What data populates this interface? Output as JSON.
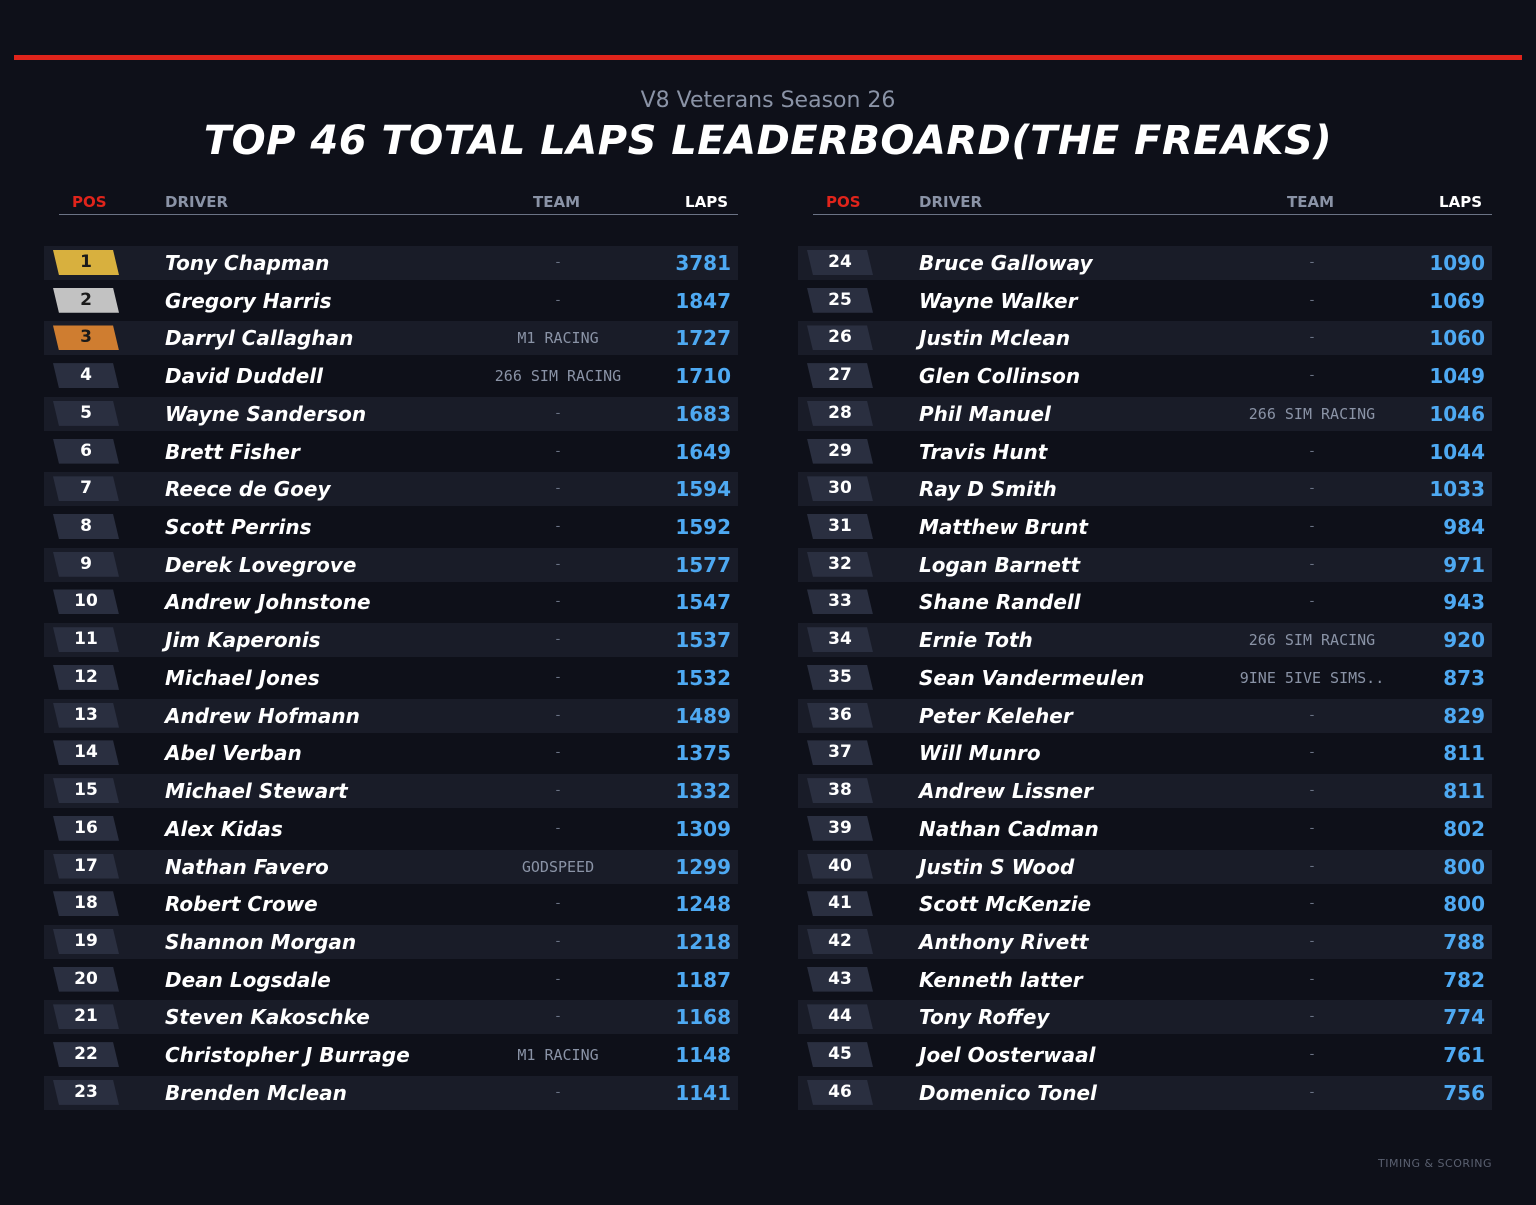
{
  "colors": {
    "accent": "#e0241b",
    "gold": "#d8b03e",
    "silver": "#c2c2c2",
    "bronze": "#cf7d30",
    "laps": "#4ea9f2",
    "background": "#0e1019"
  },
  "subtitle": "V8 Veterans Season 26",
  "title": "TOP 46 TOTAL LAPS LEADERBOARD(THE FREAKS)",
  "headers": {
    "pos": "POS",
    "driver": "DRIVER",
    "team": "TEAM",
    "laps": "LAPS"
  },
  "footer": "TIMING & SCORING",
  "left": [
    {
      "pos": "1",
      "driver": "Tony Chapman",
      "team": "-",
      "laps": "3781"
    },
    {
      "pos": "2",
      "driver": "Gregory Harris",
      "team": "-",
      "laps": "1847"
    },
    {
      "pos": "3",
      "driver": "Darryl Callaghan",
      "team": "M1 RACING",
      "laps": "1727"
    },
    {
      "pos": "4",
      "driver": "David Duddell",
      "team": "266 SIM RACING",
      "laps": "1710"
    },
    {
      "pos": "5",
      "driver": "Wayne Sanderson",
      "team": "-",
      "laps": "1683"
    },
    {
      "pos": "6",
      "driver": "Brett Fisher",
      "team": "-",
      "laps": "1649"
    },
    {
      "pos": "7",
      "driver": "Reece de Goey",
      "team": "-",
      "laps": "1594"
    },
    {
      "pos": "8",
      "driver": "Scott Perrins",
      "team": "-",
      "laps": "1592"
    },
    {
      "pos": "9",
      "driver": "Derek Lovegrove",
      "team": "-",
      "laps": "1577"
    },
    {
      "pos": "10",
      "driver": "Andrew Johnstone",
      "team": "-",
      "laps": "1547"
    },
    {
      "pos": "11",
      "driver": "Jim Kaperonis",
      "team": "-",
      "laps": "1537"
    },
    {
      "pos": "12",
      "driver": "Michael Jones",
      "team": "-",
      "laps": "1532"
    },
    {
      "pos": "13",
      "driver": "Andrew Hofmann",
      "team": "-",
      "laps": "1489"
    },
    {
      "pos": "14",
      "driver": "Abel Verban",
      "team": "-",
      "laps": "1375"
    },
    {
      "pos": "15",
      "driver": "Michael Stewart",
      "team": "-",
      "laps": "1332"
    },
    {
      "pos": "16",
      "driver": "Alex Kidas",
      "team": "-",
      "laps": "1309"
    },
    {
      "pos": "17",
      "driver": "Nathan Favero",
      "team": "GODSPEED",
      "laps": "1299"
    },
    {
      "pos": "18",
      "driver": "Robert Crowe",
      "team": "-",
      "laps": "1248"
    },
    {
      "pos": "19",
      "driver": "Shannon Morgan",
      "team": "-",
      "laps": "1218"
    },
    {
      "pos": "20",
      "driver": "Dean Logsdale",
      "team": "-",
      "laps": "1187"
    },
    {
      "pos": "21",
      "driver": "Steven Kakoschke",
      "team": "-",
      "laps": "1168"
    },
    {
      "pos": "22",
      "driver": "Christopher J Burrage",
      "team": "M1 RACING",
      "laps": "1148"
    },
    {
      "pos": "23",
      "driver": "Brenden Mclean",
      "team": "-",
      "laps": "1141"
    }
  ],
  "right": [
    {
      "pos": "24",
      "driver": "Bruce Galloway",
      "team": "-",
      "laps": "1090"
    },
    {
      "pos": "25",
      "driver": "Wayne Walker",
      "team": "-",
      "laps": "1069"
    },
    {
      "pos": "26",
      "driver": "Justin Mclean",
      "team": "-",
      "laps": "1060"
    },
    {
      "pos": "27",
      "driver": "Glen Collinson",
      "team": "-",
      "laps": "1049"
    },
    {
      "pos": "28",
      "driver": "Phil Manuel",
      "team": "266 SIM RACING",
      "laps": "1046"
    },
    {
      "pos": "29",
      "driver": "Travis Hunt",
      "team": "-",
      "laps": "1044"
    },
    {
      "pos": "30",
      "driver": "Ray D Smith",
      "team": "-",
      "laps": "1033"
    },
    {
      "pos": "31",
      "driver": "Matthew Brunt",
      "team": "-",
      "laps": "984"
    },
    {
      "pos": "32",
      "driver": "Logan Barnett",
      "team": "-",
      "laps": "971"
    },
    {
      "pos": "33",
      "driver": "Shane Randell",
      "team": "-",
      "laps": "943"
    },
    {
      "pos": "34",
      "driver": "Ernie Toth",
      "team": "266 SIM RACING",
      "laps": "920"
    },
    {
      "pos": "35",
      "driver": "Sean Vandermeulen",
      "team": "9INE 5IVE SIMS..",
      "laps": "873"
    },
    {
      "pos": "36",
      "driver": "Peter Keleher",
      "team": "-",
      "laps": "829"
    },
    {
      "pos": "37",
      "driver": "Will Munro",
      "team": "-",
      "laps": "811"
    },
    {
      "pos": "38",
      "driver": "Andrew Lissner",
      "team": "-",
      "laps": "811"
    },
    {
      "pos": "39",
      "driver": "Nathan Cadman",
      "team": "-",
      "laps": "802"
    },
    {
      "pos": "40",
      "driver": "Justin S Wood",
      "team": "-",
      "laps": "800"
    },
    {
      "pos": "41",
      "driver": "Scott McKenzie",
      "team": "-",
      "laps": "800"
    },
    {
      "pos": "42",
      "driver": "Anthony Rivett",
      "team": "-",
      "laps": "788"
    },
    {
      "pos": "43",
      "driver": "Kenneth latter",
      "team": "-",
      "laps": "782"
    },
    {
      "pos": "44",
      "driver": "Tony Roffey",
      "team": "-",
      "laps": "774"
    },
    {
      "pos": "45",
      "driver": "Joel Oosterwaal",
      "team": "-",
      "laps": "761"
    },
    {
      "pos": "46",
      "driver": "Domenico Tonel",
      "team": "-",
      "laps": "756"
    }
  ]
}
